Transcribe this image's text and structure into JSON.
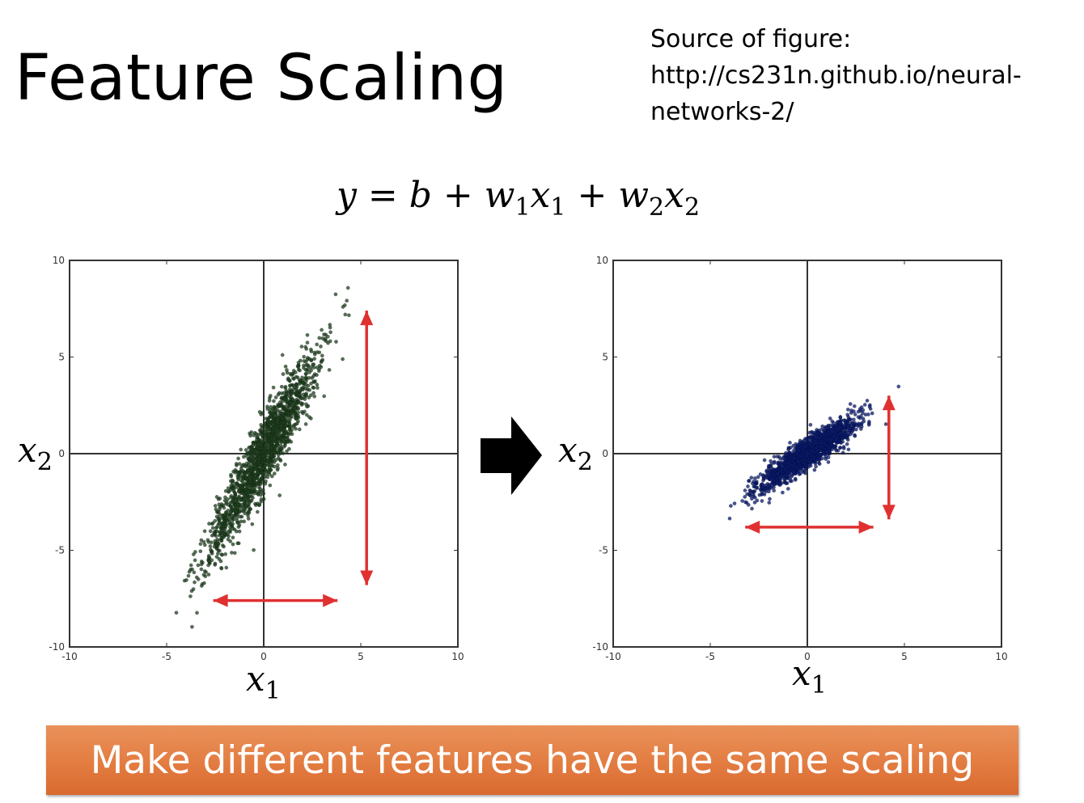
{
  "slide": {
    "title": "Feature Scaling",
    "source_lines": [
      "Source of figure:",
      "http://cs231n.github.io/neural-",
      "networks-2/"
    ],
    "banner": "Make different features have the same scaling"
  },
  "formula": {
    "y": "y",
    "eq": "=",
    "b": "b",
    "plus": "+",
    "w": "w",
    "x": "x",
    "sub1": "1",
    "sub2": "2"
  },
  "labels": {
    "x_var": "x",
    "sub1": "1",
    "sub2": "2"
  },
  "colors": {
    "original_points": "#1e3d1e",
    "scaled_points": "#0a1a6b",
    "arrows": "#e03030",
    "banner": "#e27a3f",
    "axis_lines": "#333333"
  },
  "chart_data": [
    {
      "type": "scatter",
      "name": "original",
      "xlim": [
        -10,
        10
      ],
      "ylim": [
        -10,
        10
      ],
      "xticks": [
        "-10",
        "-5",
        "0",
        "5",
        "10"
      ],
      "yticks": [
        "10",
        "5",
        "0",
        "-5",
        "-10"
      ],
      "grid": false,
      "cross_at_origin": true,
      "cloud": {
        "mean": [
          0,
          0
        ],
        "std_major": 3.0,
        "std_minor": 0.45,
        "angle_deg": 62,
        "count": 1600
      },
      "arrows": [
        {
          "orientation": "vertical",
          "from": [
            5.3,
            -6.8
          ],
          "to": [
            5.3,
            7.4
          ]
        },
        {
          "orientation": "horizontal",
          "from": [
            -2.6,
            -7.6
          ],
          "to": [
            3.8,
            -7.6
          ]
        }
      ]
    },
    {
      "type": "scatter",
      "name": "scaled",
      "xlim": [
        -10,
        10
      ],
      "ylim": [
        -10,
        10
      ],
      "xticks": [
        "-10",
        "-5",
        "0",
        "5",
        "10"
      ],
      "yticks": [
        "10",
        "5",
        "0",
        "-5",
        "-10"
      ],
      "grid": false,
      "cross_at_origin": true,
      "cloud": {
        "mean": [
          0,
          0
        ],
        "std_major": 1.55,
        "std_minor": 0.32,
        "angle_deg": 35,
        "count": 1500
      },
      "arrows": [
        {
          "orientation": "vertical",
          "from": [
            4.2,
            -3.4
          ],
          "to": [
            4.2,
            3.0
          ]
        },
        {
          "orientation": "horizontal",
          "from": [
            -3.2,
            -3.8
          ],
          "to": [
            3.4,
            -3.8
          ]
        }
      ]
    }
  ]
}
